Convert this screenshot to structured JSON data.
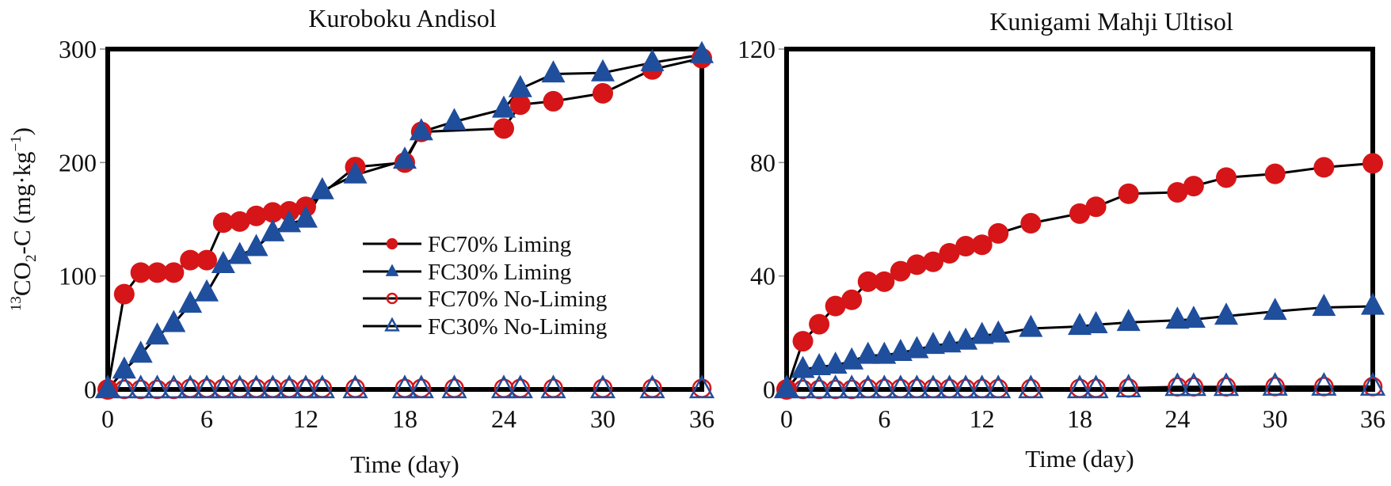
{
  "chart_data": [
    {
      "type": "line",
      "title": "Kuroboku Andisol",
      "xlabel": "Time (day)",
      "ylabel_parts": {
        "sup": "13",
        "main": "CO",
        "sub": "2",
        "rest": "-C (mg·kg",
        "sup2": "−1",
        "end": ")"
      },
      "ylabel": "13CO2-C (mg·kg−1)",
      "xlim": [
        0,
        36
      ],
      "ylim": [
        0,
        300
      ],
      "xticks": [
        0,
        6,
        12,
        18,
        24,
        30,
        36
      ],
      "yticks": [
        0,
        100,
        200,
        300
      ],
      "legend_position": "center",
      "series": [
        {
          "name": "FC70% Liming",
          "marker": "circle-filled",
          "color": "#d61518",
          "x": [
            0,
            1,
            2,
            3,
            4,
            5,
            6,
            7,
            8,
            9,
            10,
            11,
            12,
            15,
            18,
            19,
            24,
            25,
            27,
            30,
            33,
            36
          ],
          "y": [
            0,
            84,
            103,
            103,
            103,
            114,
            114,
            147,
            148,
            153,
            156,
            157,
            161,
            196,
            200,
            227,
            230,
            251,
            254,
            261,
            282,
            292
          ]
        },
        {
          "name": "FC30% Liming",
          "marker": "triangle-filled",
          "color": "#1f4e9c",
          "x": [
            0,
            1,
            2,
            3,
            4,
            5,
            6,
            7,
            8,
            9,
            10,
            11,
            12,
            13,
            15,
            18,
            19,
            21,
            24,
            25,
            27,
            30,
            33,
            36
          ],
          "y": [
            0,
            17,
            31,
            47,
            58,
            75,
            85,
            110,
            118,
            125,
            138,
            146,
            150,
            175,
            189,
            202,
            227,
            236,
            247,
            265,
            278,
            279,
            288,
            295
          ]
        },
        {
          "name": "FC70% No-Liming",
          "marker": "circle-open",
          "color": "#d61518",
          "x": [
            0,
            1,
            2,
            3,
            4,
            5,
            6,
            7,
            8,
            9,
            10,
            11,
            12,
            13,
            15,
            18,
            19,
            21,
            24,
            25,
            27,
            30,
            33,
            36
          ],
          "y": [
            0,
            0,
            0,
            0,
            0,
            1,
            1,
            1,
            1,
            1,
            1,
            1,
            1,
            1,
            1,
            1,
            1,
            1,
            1,
            1,
            1,
            1,
            1,
            1
          ]
        },
        {
          "name": "FC30% No-Liming",
          "marker": "triangle-open",
          "color": "#1f4e9c",
          "x": [
            0,
            1,
            2,
            3,
            4,
            5,
            6,
            7,
            8,
            9,
            10,
            11,
            12,
            13,
            15,
            18,
            19,
            21,
            24,
            25,
            27,
            30,
            33,
            36
          ],
          "y": [
            0,
            0,
            0,
            0,
            0,
            0,
            0,
            0,
            0,
            0,
            0,
            0,
            0,
            0,
            0,
            0,
            0,
            0,
            0,
            0,
            0,
            0,
            0,
            0
          ]
        }
      ]
    },
    {
      "type": "line",
      "title": "Kunigami Mahji Ultisol",
      "xlabel": "Time (day)",
      "xlim": [
        0,
        36
      ],
      "ylim": [
        0,
        120
      ],
      "xticks": [
        0,
        6,
        12,
        18,
        24,
        30,
        36
      ],
      "yticks": [
        0,
        40,
        80,
        120
      ],
      "series": [
        {
          "name": "FC70% Liming",
          "marker": "circle-filled",
          "color": "#d61518",
          "x": [
            0,
            1,
            2,
            3,
            4,
            5,
            6,
            7,
            8,
            9,
            10,
            11,
            12,
            13,
            15,
            18,
            19,
            21,
            24,
            25,
            27,
            30,
            33,
            36
          ],
          "y": [
            0,
            17,
            23,
            29.4,
            31.6,
            38,
            38,
            41.7,
            44,
            45,
            48,
            50.5,
            51,
            55,
            58.6,
            62,
            64.4,
            69,
            69.5,
            71.7,
            74.7,
            76,
            78.3,
            79.7
          ]
        },
        {
          "name": "FC30% Liming",
          "marker": "triangle-filled",
          "color": "#1f4e9c",
          "x": [
            0,
            1,
            2,
            3,
            4,
            5,
            6,
            7,
            8,
            9,
            10,
            11,
            12,
            13,
            15,
            18,
            19,
            21,
            24,
            25,
            27,
            30,
            33,
            36
          ],
          "y": [
            0,
            7,
            8,
            8.5,
            10,
            12,
            12,
            13,
            14,
            15.5,
            16,
            17,
            19,
            19.5,
            21.5,
            22.2,
            22.8,
            23.6,
            24.4,
            24.7,
            25.8,
            27.5,
            28.9,
            29.3
          ]
        },
        {
          "name": "FC70% No-Liming",
          "marker": "circle-open",
          "color": "#d61518",
          "x": [
            0,
            1,
            2,
            3,
            4,
            5,
            6,
            7,
            8,
            9,
            10,
            11,
            12,
            13,
            15,
            18,
            19,
            21,
            24,
            25,
            27,
            30,
            33,
            36
          ],
          "y": [
            0,
            0,
            0,
            0,
            0,
            0.3,
            0.3,
            0.3,
            0.3,
            0.3,
            0.3,
            0.3,
            0.3,
            0.3,
            0.3,
            0.4,
            0.4,
            0.5,
            0.9,
            0.9,
            0.9,
            1,
            1,
            1
          ]
        },
        {
          "name": "FC30% No-Liming",
          "marker": "triangle-open",
          "color": "#1f4e9c",
          "x": [
            0,
            1,
            2,
            3,
            4,
            5,
            6,
            7,
            8,
            9,
            10,
            11,
            12,
            13,
            15,
            18,
            19,
            21,
            24,
            25,
            27,
            30,
            33,
            36
          ],
          "y": [
            0,
            0,
            0,
            0,
            0,
            0,
            0,
            0,
            0,
            0,
            0,
            0,
            0,
            0,
            0,
            0,
            0,
            0.3,
            0.8,
            0.8,
            0.8,
            0.9,
            0.9,
            0.9
          ]
        }
      ]
    }
  ],
  "legend": {
    "items": [
      "FC70% Liming",
      "FC30% Liming",
      "FC70% No-Liming",
      "FC30% No-Liming"
    ]
  }
}
